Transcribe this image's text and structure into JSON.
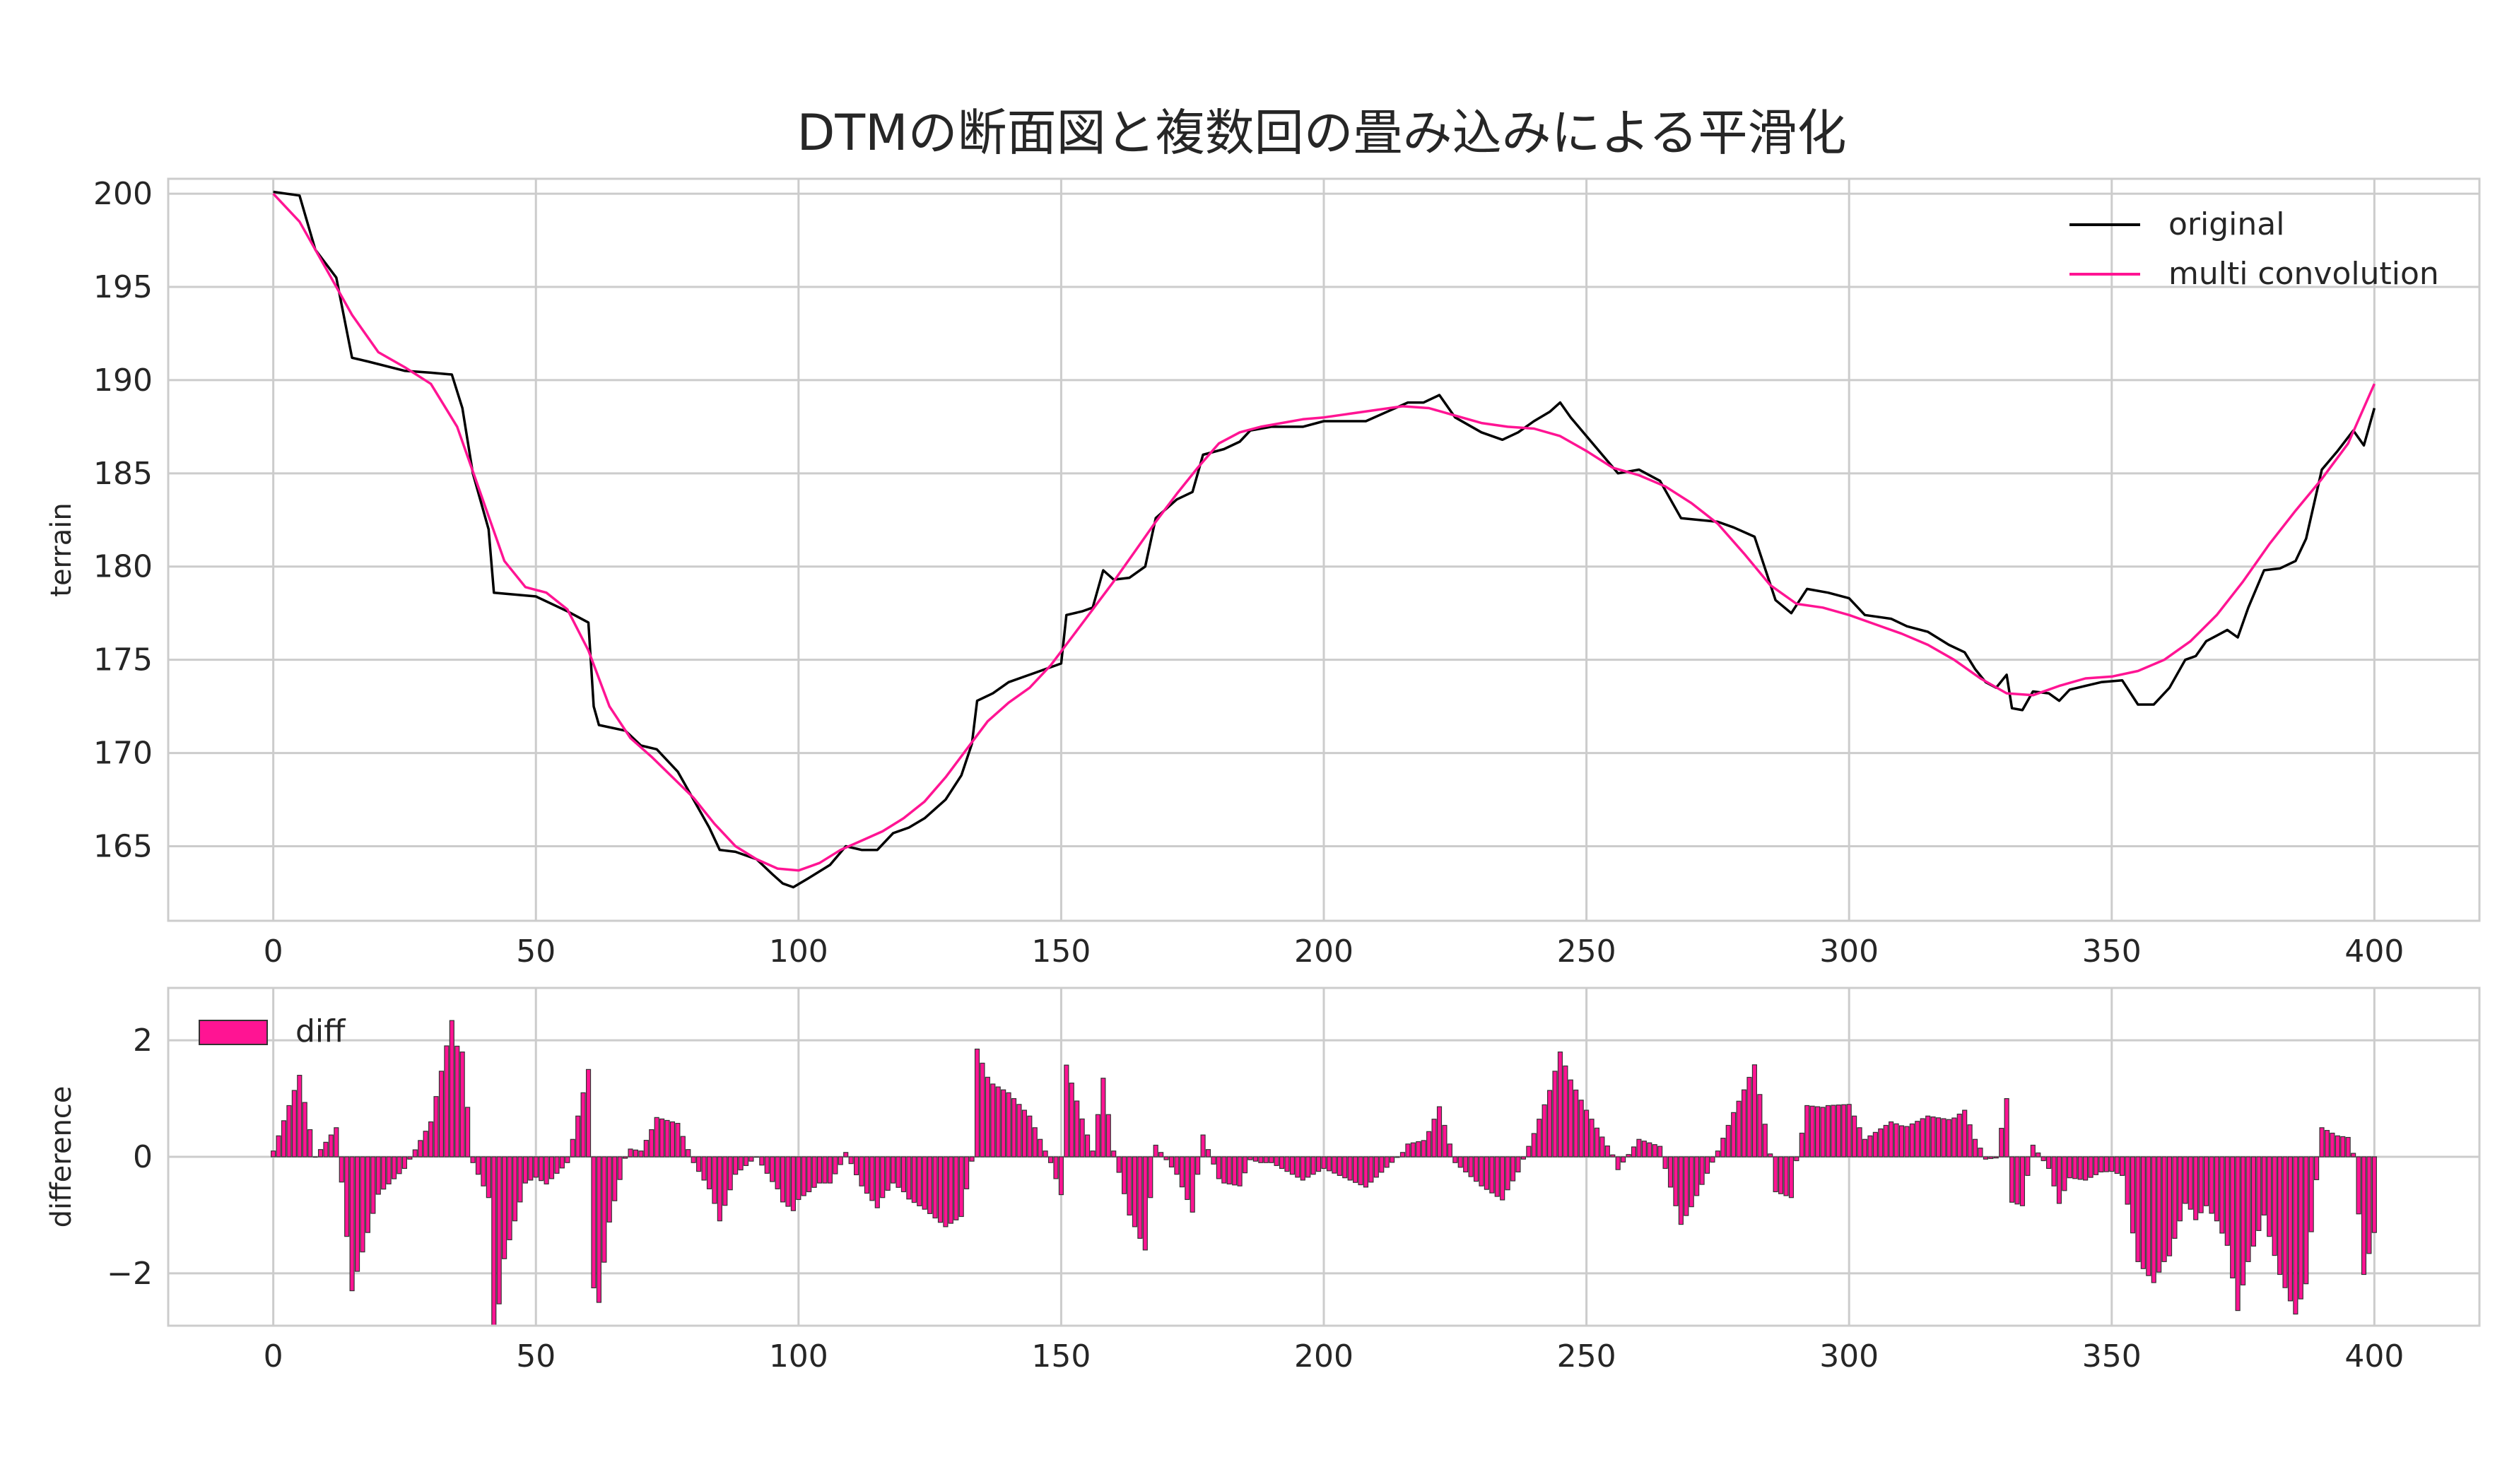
{
  "title": "DTMの断面図と複数回の畳み込みによる平滑化",
  "colors": {
    "original": "#000000",
    "smooth": "#ff1493",
    "bar_fill": "#ff1493",
    "bar_edge": "#333333",
    "grid": "#cccccc"
  },
  "chart_data": [
    {
      "type": "line",
      "ylabel": "terrain",
      "xlim": [
        -20,
        420
      ],
      "ylim": [
        161.0,
        200.8
      ],
      "xticks": [
        0,
        50,
        100,
        150,
        200,
        250,
        300,
        350,
        400
      ],
      "yticks": [
        165,
        170,
        175,
        180,
        185,
        190,
        195,
        200
      ],
      "legend_position": "top-right",
      "series": [
        {
          "name": "original",
          "points": [
            [
              0,
              200.1
            ],
            [
              5,
              199.9
            ],
            [
              8,
              197
            ],
            [
              12,
              195.5
            ],
            [
              15,
              191.2
            ],
            [
              18,
              191
            ],
            [
              25,
              190.5
            ],
            [
              30,
              190.4
            ],
            [
              34,
              190.3
            ],
            [
              36,
              188.5
            ],
            [
              38,
              185
            ],
            [
              41,
              182
            ],
            [
              42,
              178.6
            ],
            [
              50,
              178.4
            ],
            [
              56,
              177.6
            ],
            [
              60,
              177
            ],
            [
              61,
              172.5
            ],
            [
              62,
              171.5
            ],
            [
              67,
              171.2
            ],
            [
              70,
              170.4
            ],
            [
              73,
              170.2
            ],
            [
              77,
              169
            ],
            [
              80,
              167.5
            ],
            [
              83,
              166
            ],
            [
              85,
              164.8
            ],
            [
              88,
              164.7
            ],
            [
              92,
              164.3
            ],
            [
              95,
              163.5
            ],
            [
              97,
              163
            ],
            [
              99,
              162.8
            ],
            [
              102,
              163.3
            ],
            [
              106,
              164
            ],
            [
              109,
              165
            ],
            [
              112,
              164.8
            ],
            [
              115,
              164.8
            ],
            [
              118,
              165.7
            ],
            [
              121,
              166
            ],
            [
              124,
              166.5
            ],
            [
              128,
              167.5
            ],
            [
              131,
              168.8
            ],
            [
              133,
              170.5
            ],
            [
              134,
              172.8
            ],
            [
              137,
              173.2
            ],
            [
              140,
              173.8
            ],
            [
              143,
              174.1
            ],
            [
              145,
              174.3
            ],
            [
              150,
              174.8
            ],
            [
              151,
              177.4
            ],
            [
              154,
              177.6
            ],
            [
              156,
              177.8
            ],
            [
              158,
              179.8
            ],
            [
              160,
              179.3
            ],
            [
              163,
              179.4
            ],
            [
              166,
              180
            ],
            [
              168,
              182.6
            ],
            [
              172,
              183.6
            ],
            [
              175,
              184
            ],
            [
              177,
              186
            ],
            [
              181,
              186.3
            ],
            [
              184,
              186.7
            ],
            [
              186,
              187.3
            ],
            [
              190,
              187.5
            ],
            [
              196,
              187.5
            ],
            [
              200,
              187.8
            ],
            [
              208,
              187.8
            ],
            [
              212,
              188.3
            ],
            [
              216,
              188.8
            ],
            [
              219,
              188.8
            ],
            [
              222,
              189.2
            ],
            [
              225,
              188
            ],
            [
              230,
              187.2
            ],
            [
              234,
              186.8
            ],
            [
              237,
              187.2
            ],
            [
              240,
              187.8
            ],
            [
              243,
              188.3
            ],
            [
              245,
              188.8
            ],
            [
              247,
              188
            ],
            [
              250,
              187
            ],
            [
              253,
              186
            ],
            [
              256,
              185
            ],
            [
              260,
              185.2
            ],
            [
              264,
              184.6
            ],
            [
              268,
              182.6
            ],
            [
              275,
              182.4
            ],
            [
              278,
              182.1
            ],
            [
              282,
              181.6
            ],
            [
              286,
              178.2
            ],
            [
              289,
              177.5
            ],
            [
              292,
              178.8
            ],
            [
              296,
              178.6
            ],
            [
              300,
              178.3
            ],
            [
              303,
              177.4
            ],
            [
              308,
              177.2
            ],
            [
              311,
              176.8
            ],
            [
              315,
              176.5
            ],
            [
              319,
              175.8
            ],
            [
              322,
              175.4
            ],
            [
              324,
              174.5
            ],
            [
              326,
              173.8
            ],
            [
              328,
              173.5
            ],
            [
              330,
              174.2
            ],
            [
              331,
              172.4
            ],
            [
              333,
              172.3
            ],
            [
              335,
              173.3
            ],
            [
              338,
              173.2
            ],
            [
              340,
              172.8
            ],
            [
              342,
              173.4
            ],
            [
              345,
              173.6
            ],
            [
              348,
              173.8
            ],
            [
              352,
              173.9
            ],
            [
              355,
              172.6
            ],
            [
              358,
              172.6
            ],
            [
              361,
              173.5
            ],
            [
              364,
              175
            ],
            [
              366,
              175.2
            ],
            [
              368,
              176
            ],
            [
              370,
              176.3
            ],
            [
              372,
              176.6
            ],
            [
              374,
              176.2
            ],
            [
              376,
              177.8
            ],
            [
              379,
              179.8
            ],
            [
              382,
              179.9
            ],
            [
              385,
              180.3
            ],
            [
              387,
              181.5
            ],
            [
              390,
              185.2
            ],
            [
              393,
              186.2
            ],
            [
              396,
              187.3
            ],
            [
              398,
              186.5
            ],
            [
              400,
              188.5
            ]
          ]
        },
        {
          "name": "multi convolution",
          "points": [
            [
              0,
              200
            ],
            [
              5,
              198.5
            ],
            [
              10,
              196
            ],
            [
              15,
              193.5
            ],
            [
              20,
              191.5
            ],
            [
              25,
              190.7
            ],
            [
              30,
              189.8
            ],
            [
              35,
              187.5
            ],
            [
              40,
              183.5
            ],
            [
              44,
              180.3
            ],
            [
              48,
              178.9
            ],
            [
              52,
              178.6
            ],
            [
              56,
              177.7
            ],
            [
              60,
              175.5
            ],
            [
              64,
              172.5
            ],
            [
              68,
              170.8
            ],
            [
              72,
              169.8
            ],
            [
              76,
              168.7
            ],
            [
              80,
              167.6
            ],
            [
              84,
              166.2
            ],
            [
              88,
              165
            ],
            [
              92,
              164.3
            ],
            [
              96,
              163.8
            ],
            [
              100,
              163.7
            ],
            [
              104,
              164.1
            ],
            [
              108,
              164.8
            ],
            [
              112,
              165.3
            ],
            [
              116,
              165.8
            ],
            [
              120,
              166.5
            ],
            [
              124,
              167.4
            ],
            [
              128,
              168.7
            ],
            [
              132,
              170.2
            ],
            [
              136,
              171.7
            ],
            [
              140,
              172.7
            ],
            [
              144,
              173.5
            ],
            [
              148,
              174.7
            ],
            [
              152,
              176.2
            ],
            [
              156,
              177.7
            ],
            [
              160,
              179.2
            ],
            [
              164,
              180.8
            ],
            [
              168,
              182.4
            ],
            [
              172,
              183.9
            ],
            [
              176,
              185.3
            ],
            [
              180,
              186.6
            ],
            [
              184,
              187.2
            ],
            [
              188,
              187.5
            ],
            [
              192,
              187.7
            ],
            [
              196,
              187.9
            ],
            [
              200,
              188
            ],
            [
              205,
              188.2
            ],
            [
              210,
              188.4
            ],
            [
              215,
              188.6
            ],
            [
              220,
              188.5
            ],
            [
              225,
              188.1
            ],
            [
              230,
              187.7
            ],
            [
              235,
              187.5
            ],
            [
              240,
              187.4
            ],
            [
              245,
              187
            ],
            [
              250,
              186.2
            ],
            [
              255,
              185.3
            ],
            [
              260,
              184.9
            ],
            [
              265,
              184.3
            ],
            [
              270,
              183.4
            ],
            [
              275,
              182.3
            ],
            [
              280,
              180.7
            ],
            [
              285,
              179
            ],
            [
              290,
              178
            ],
            [
              295,
              177.8
            ],
            [
              300,
              177.4
            ],
            [
              305,
              176.9
            ],
            [
              310,
              176.4
            ],
            [
              315,
              175.8
            ],
            [
              320,
              175
            ],
            [
              325,
              174
            ],
            [
              330,
              173.2
            ],
            [
              335,
              173.1
            ],
            [
              340,
              173.6
            ],
            [
              345,
              174
            ],
            [
              350,
              174.1
            ],
            [
              355,
              174.4
            ],
            [
              360,
              175
            ],
            [
              365,
              176
            ],
            [
              370,
              177.4
            ],
            [
              375,
              179.2
            ],
            [
              380,
              181.2
            ],
            [
              385,
              183
            ],
            [
              390,
              184.7
            ],
            [
              395,
              186.6
            ],
            [
              400,
              189.8
            ]
          ]
        }
      ]
    },
    {
      "type": "bar",
      "ylabel": "difference",
      "xlim": [
        -20,
        420
      ],
      "ylim": [
        -2.9,
        2.9
      ],
      "xticks": [
        0,
        50,
        100,
        150,
        200,
        250,
        300,
        350,
        400
      ],
      "yticks": [
        -2,
        0,
        2
      ],
      "legend_position": "top-left",
      "series": [
        {
          "name": "diff"
        }
      ]
    }
  ]
}
